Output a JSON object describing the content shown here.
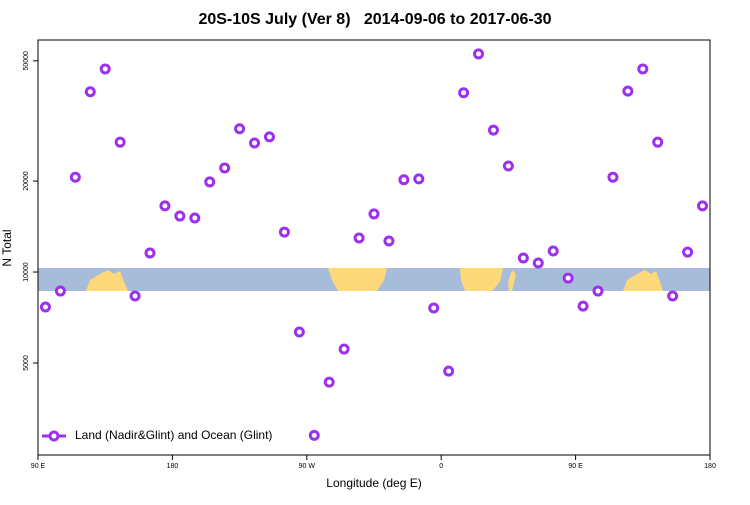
{
  "chart_data": {
    "type": "scatter",
    "title": "20S-10S July (Ver 8)   2014-09-06 to 2017-06-30",
    "xlabel": "Longitude (deg E)",
    "ylabel": "N Total",
    "log_y": true,
    "legend_position": "lower left",
    "xlim": [
      90,
      540
    ],
    "xticks": [
      {
        "value": 90,
        "label": "90 E"
      },
      180,
      {
        "value": 270,
        "label": "90 W"
      },
      {
        "value": 360,
        "label": "0"
      },
      {
        "value": 450,
        "label": "90 E"
      },
      {
        "value": 540,
        "label": "180"
      }
    ],
    "ylim": [
      2480,
      58600
    ],
    "yticks": [
      5000,
      10000,
      20000,
      50000
    ],
    "series": [
      {
        "name": "Land (Nadir&Glint) and Ocean (Glint)",
        "color": "#9b30f0",
        "x": [
          95,
          105,
          115,
          125,
          135,
          145,
          155,
          165,
          175,
          185,
          195,
          205,
          215,
          225,
          235,
          245,
          255,
          265,
          275,
          285,
          295,
          305,
          315,
          325,
          335,
          345,
          355,
          365,
          375,
          385,
          395,
          405,
          415,
          425,
          435,
          445,
          455,
          465,
          475,
          485,
          495,
          505,
          515,
          525,
          535
        ],
        "values": [
          7660,
          8650,
          20600,
          39500,
          47000,
          26900,
          8330,
          11560,
          16560,
          15320,
          15090,
          19870,
          22100,
          29800,
          26740,
          28000,
          13560,
          6330,
          2880,
          4320,
          5560,
          12960,
          15570,
          12670,
          20200,
          20330,
          7600,
          4700,
          39200,
          52700,
          29500,
          22440,
          11130,
          10710,
          11740,
          9550,
          7710,
          8650,
          20600,
          39700,
          47000,
          26900,
          8330,
          11640,
          16560
        ]
      }
    ]
  }
}
